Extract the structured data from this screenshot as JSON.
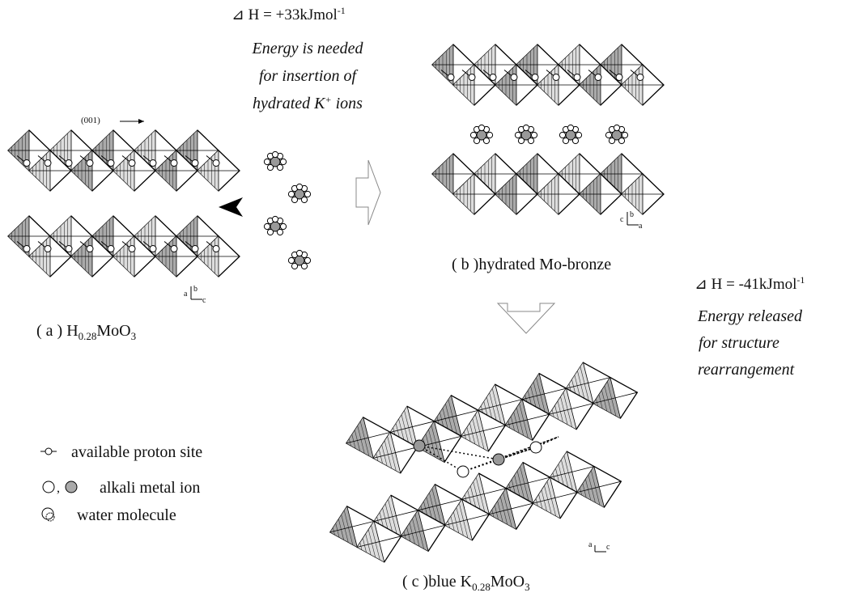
{
  "header": {
    "enthalpy_insertion": {
      "main": "⊿ H = +33kJmol",
      "sup": "-1"
    },
    "insertion_note": [
      "Energy is needed",
      "for insertion of"
    ],
    "insertion_note_last": {
      "before": "hydrated K",
      "sup": "+",
      "after": " ions"
    },
    "direction": "(001)"
  },
  "panel_a": {
    "label": {
      "prefix": "( a ) H",
      "sub": "0.28",
      "mid": "MoO",
      "sub2": "3"
    },
    "axes": [
      "a",
      "b",
      "c"
    ]
  },
  "panel_b": {
    "label": "( b )hydrated Mo-bronze",
    "axes": [
      "c",
      "b",
      "a"
    ]
  },
  "panel_c": {
    "label": {
      "prefix": "( c )blue K",
      "sub": "0.28",
      "mid": "MoO",
      "sub2": "3"
    },
    "axes": [
      "a",
      "c"
    ]
  },
  "rearrangement": {
    "enthalpy": {
      "main": "⊿ H = -41kJmol",
      "sup": "-1"
    },
    "note": [
      "Energy released",
      " for structure",
      "rearrangement"
    ]
  },
  "legend": {
    "items": [
      "available proton site",
      "alkali metal ion",
      "water molecule"
    ],
    "separator": ","
  }
}
